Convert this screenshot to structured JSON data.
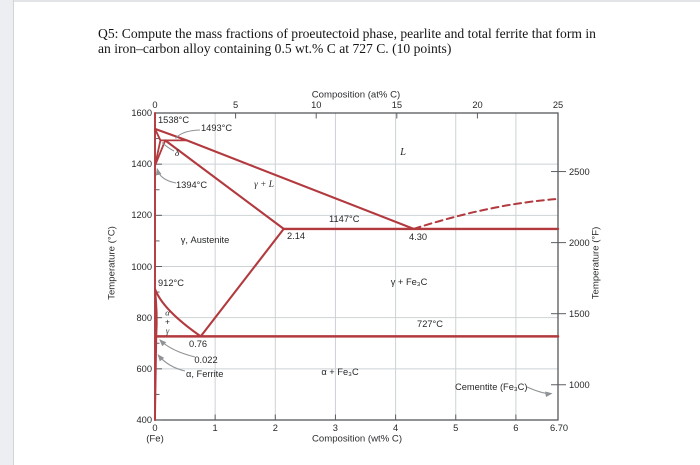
{
  "question": {
    "line1": "Q5: Compute the mass fractions of proeutectoid phase, pearlite and total ferrite that form in",
    "line2": "an iron–carbon alloy containing 0.5 wt.% C at 727 C. (10 points)"
  },
  "chart_data": {
    "type": "line",
    "title": "Iron–carbon (Fe–Fe3C) phase diagram",
    "xlabel": "Composition (wt% C)",
    "xlabel_top": "Composition (at% C)",
    "ylabel_left": "Temperature (°C)",
    "ylabel_right": "Temperature (°F)",
    "x_origin_label": "(Fe)",
    "x_ticks_top": [
      "0",
      "5",
      "10",
      "15",
      "20",
      "25"
    ],
    "x_ticks_bottom": [
      "0",
      "1",
      "2",
      "3",
      "4",
      "5",
      "6"
    ],
    "x_max_label": "6.70",
    "y_ticks_left": [
      "1600",
      "1400",
      "1200",
      "1000",
      "800",
      "600",
      "400"
    ],
    "y_ticks_right": [
      "2500",
      "2000",
      "1500",
      "1000"
    ],
    "axes": {
      "wt_max": 6.7,
      "at_max": 25,
      "t_min_c": 400,
      "t_max_c": 1600,
      "grid_wt": [
        1,
        2,
        3,
        4,
        5,
        6
      ],
      "grid_t_c": [
        1400,
        1200,
        1000,
        800,
        600
      ],
      "major_t_c": [
        1600,
        1400,
        1200,
        1000,
        800,
        600,
        400
      ],
      "minor_t_c": [
        1500,
        1300,
        1100,
        900,
        700,
        500
      ],
      "top_ticks_at": [
        5,
        10,
        15,
        20
      ],
      "right_ticks_f": [
        2500,
        2000,
        1500,
        1000
      ],
      "grid": true
    },
    "boundaries": [
      {
        "name": "liquidus",
        "points": [
          [
            0,
            1538
          ],
          [
            0.53,
            1493
          ],
          [
            4.3,
            1147
          ]
        ],
        "w": 2.1
      },
      {
        "name": "liquidus-cementite",
        "points": [
          [
            4.3,
            1147
          ],
          [
            5.6,
            1245
          ],
          [
            6.7,
            1264
          ]
        ],
        "curve": true,
        "dashed": true,
        "w": 2
      },
      {
        "name": "delta-solidus",
        "points": [
          [
            0,
            1538
          ],
          [
            0.09,
            1493
          ]
        ],
        "w": 1.9
      },
      {
        "name": "peritectic-isotherm",
        "points": [
          [
            0.09,
            1493
          ],
          [
            0.53,
            1493
          ]
        ],
        "w": 1.8
      },
      {
        "name": "delta-gamma-upper",
        "points": [
          [
            0.09,
            1493
          ],
          [
            0,
            1394
          ]
        ],
        "w": 1.8
      },
      {
        "name": "delta-gamma-lower",
        "points": [
          [
            0.17,
            1493
          ],
          [
            0,
            1394
          ]
        ],
        "w": 1.8
      },
      {
        "name": "gamma-solidus",
        "points": [
          [
            0.17,
            1493
          ],
          [
            2.14,
            1147
          ]
        ],
        "w": 2.1
      },
      {
        "name": "eutectic-isotherm-1147",
        "points": [
          [
            2.14,
            1147
          ],
          [
            6.7,
            1147
          ]
        ],
        "w": 2.4
      },
      {
        "name": "acm",
        "points": [
          [
            2.14,
            1147
          ],
          [
            0.76,
            727
          ]
        ],
        "w": 2.1
      },
      {
        "name": "a3",
        "points": [
          [
            0,
            912
          ],
          [
            0.13,
            830
          ],
          [
            0.76,
            727
          ]
        ],
        "curve": true,
        "w": 2.1
      },
      {
        "name": "alpha-gamma-solvus",
        "points": [
          [
            0,
            912
          ],
          [
            0.045,
            820
          ],
          [
            0.022,
            727
          ]
        ],
        "curve": true,
        "w": 1.8
      },
      {
        "name": "eutectoid-isotherm-727",
        "points": [
          [
            0.022,
            727
          ],
          [
            6.7,
            727
          ]
        ],
        "w": 2.5
      },
      {
        "name": "alpha-solvus",
        "points": [
          [
            0.022,
            727
          ],
          [
            0,
            400
          ]
        ],
        "w": 1.8
      },
      {
        "name": "pure-iron-axis",
        "points": [
          [
            0,
            1600
          ],
          [
            0,
            400
          ]
        ],
        "w": 1.9
      }
    ],
    "key_points": {
      "Fe_melting_T_C": 1538,
      "peritectic_T_C": 1493,
      "delta_to_gamma_T_C": 1394,
      "eutectic": {
        "wt_pct_C": 4.3,
        "T_C": 1147
      },
      "max_C_austenite_wt_pct": 2.14,
      "gamma_to_alpha_T_C": 912,
      "eutectoid": {
        "wt_pct_C": 0.76,
        "T_C": 727
      },
      "max_C_ferrite_wt_pct": 0.022,
      "cementite_wt_pct_C": 6.7
    },
    "labels": {
      "t1538": "1538°C",
      "t1493": "1493°C",
      "delta": "δ",
      "t1394": "1394°C",
      "liquid": "L",
      "gamma_plus_L": "γ + L",
      "t1147": "1147°C",
      "c214": "2.14",
      "c430": "4.30",
      "austenite": "γ, Austenite",
      "t912": "912°C",
      "gamma_fe3c": "γ + Fe₃C",
      "stack_alpha": "α",
      "stack_plus": "+",
      "stack_gamma": "γ",
      "t727": "727°C",
      "c076": "0.76",
      "c0022": "0.022",
      "ferrite": "α, Ferrite",
      "alpha_fe3c": "α + Fe₃C",
      "cementite": "Cementite (Fe₃C)"
    },
    "colors": {
      "phase_line": "#b23a3f",
      "grid": "#cdd2d6",
      "frame": "#54575b",
      "tick": "#5a5e62",
      "leader": "#8f9396",
      "text": "#26282a"
    }
  }
}
